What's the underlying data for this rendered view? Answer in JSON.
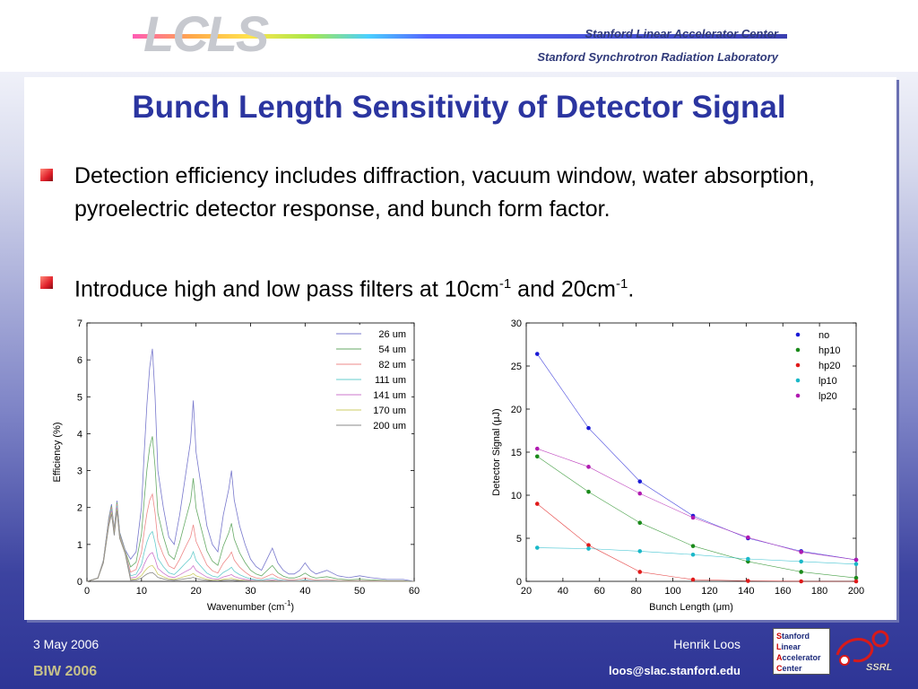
{
  "header": {
    "logo": "LCLS",
    "institution_1": "Stanford Linear Accelerator Center",
    "institution_2": "Stanford Synchrotron Radiation Laboratory"
  },
  "title": "Bunch Length Sensitivity of Detector Signal",
  "bullets": [
    "Detection efficiency includes diffraction, vacuum window, water absorption, pyroelectric detector response, and bunch form factor.",
    {
      "pre": "Introduce high and low pass filters at 10cm",
      "sup1": "-1",
      "mid": " and 20cm",
      "sup2": "-1",
      "post": "."
    }
  ],
  "footer": {
    "date": "3 May 2006",
    "event": "BIW 2006",
    "author": "Henrik Loos",
    "email": "loos@slac.stanford.edu",
    "slac_logo": [
      "Stanford",
      "Linear",
      "Accelerator",
      "Center"
    ],
    "ssrl_logo": "SSRL"
  },
  "chart_data": [
    {
      "type": "line",
      "xlabel": "Wavenumber (cm-1)",
      "ylabel": "Efficiency (%)",
      "xlim": [
        0,
        60
      ],
      "ylim": [
        0,
        7
      ],
      "xticks": [
        0,
        10,
        20,
        30,
        40,
        50,
        60
      ],
      "yticks": [
        0,
        1,
        2,
        3,
        4,
        5,
        6,
        7
      ],
      "legend_position": "top-right",
      "series": [
        {
          "name": "26 um",
          "color": "#7777cc",
          "scale": 1.0
        },
        {
          "name": "54 um",
          "color": "#66aa66",
          "scale": 0.72
        },
        {
          "name": "82 um",
          "color": "#ee8888",
          "scale": 0.5
        },
        {
          "name": "111 um",
          "color": "#66cccc",
          "scale": 0.33
        },
        {
          "name": "141 um",
          "color": "#cc77cc",
          "scale": 0.22
        },
        {
          "name": "170 um",
          "color": "#cccc66",
          "scale": 0.14
        },
        {
          "name": "200 um",
          "color": "#888888",
          "scale": 0.09
        }
      ],
      "envelope": {
        "x": [
          0,
          2,
          3,
          4,
          4.5,
          5,
          5.5,
          6,
          7,
          8,
          9,
          10,
          10.5,
          11,
          11.5,
          12,
          12.5,
          13,
          14,
          15,
          16,
          17,
          18,
          19,
          19.5,
          20,
          21,
          22,
          23,
          24,
          25,
          26,
          26.5,
          27,
          28,
          29,
          30,
          31,
          32,
          33,
          34,
          35,
          36,
          37,
          38,
          39,
          40,
          41,
          42,
          44,
          46,
          48,
          50,
          52,
          55,
          58,
          60
        ],
        "y": [
          0,
          0.1,
          0.6,
          1.8,
          2.2,
          1.5,
          2.3,
          1.4,
          0.9,
          0.6,
          0.8,
          2.0,
          3.5,
          4.8,
          5.8,
          6.3,
          5.0,
          3.0,
          2.0,
          1.2,
          1.0,
          1.8,
          2.8,
          3.8,
          4.9,
          3.5,
          2.5,
          1.5,
          1.0,
          0.8,
          1.8,
          2.5,
          3.0,
          2.2,
          1.5,
          1.0,
          0.6,
          0.4,
          0.3,
          0.6,
          0.9,
          0.5,
          0.3,
          0.2,
          0.2,
          0.3,
          0.5,
          0.3,
          0.2,
          0.3,
          0.15,
          0.1,
          0.15,
          0.1,
          0.05,
          0.05,
          0
        ]
      }
    },
    {
      "type": "scatter",
      "xlabel": "Bunch Length (μm)",
      "ylabel": "Detector Signal (μJ)",
      "xlim": [
        20,
        200
      ],
      "ylim": [
        0,
        30
      ],
      "xticks": [
        20,
        40,
        60,
        80,
        100,
        120,
        140,
        160,
        180,
        200
      ],
      "yticks": [
        0,
        5,
        10,
        15,
        20,
        25,
        30
      ],
      "legend_position": "top-right",
      "x": [
        26,
        54,
        82,
        111,
        141,
        170,
        200
      ],
      "series": [
        {
          "name": "no",
          "color": "#1a1ad6",
          "values": [
            26.4,
            17.8,
            11.6,
            7.6,
            5.0,
            3.5,
            2.5
          ]
        },
        {
          "name": "hp10",
          "color": "#1a8a1a",
          "values": [
            14.5,
            10.4,
            6.8,
            4.1,
            2.3,
            1.1,
            0.4
          ]
        },
        {
          "name": "hp20",
          "color": "#e01a1a",
          "values": [
            9.0,
            4.2,
            1.1,
            0.2,
            0.05,
            0.0,
            0.0
          ]
        },
        {
          "name": "lp10",
          "color": "#1ab8c8",
          "values": [
            3.9,
            3.8,
            3.5,
            3.1,
            2.6,
            2.3,
            2.0
          ]
        },
        {
          "name": "lp20",
          "color": "#b01ab0",
          "values": [
            15.4,
            13.3,
            10.2,
            7.4,
            5.1,
            3.4,
            2.5
          ]
        }
      ]
    }
  ]
}
